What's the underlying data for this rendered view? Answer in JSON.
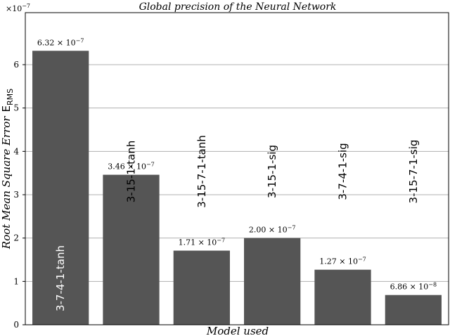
{
  "chart_data": {
    "type": "bar",
    "title": "Global precision of the Neural Network",
    "xlabel": "Model used",
    "ylabel_main": "Root Mean Square Error",
    "ylabel_symbol": "E",
    "ylabel_subscript": "RMS",
    "axis_multiplier": "×10",
    "axis_multiplier_exp": "−7",
    "ylim": [
      0,
      7.2
    ],
    "y_ticks": [
      0,
      1,
      2,
      3,
      4,
      5,
      6
    ],
    "y_tick_labels": [
      "0",
      "1",
      "2",
      "3",
      "4",
      "5",
      "6"
    ],
    "grid": true,
    "categories": [
      "3-7-4-1-tanh",
      "3-15-1-tanh",
      "3-15-7-1-tanh",
      "3-15-1-sig",
      "3-7-4-1-sig",
      "3-15-7-1-sig"
    ],
    "values": [
      6.32,
      3.46,
      1.71,
      2.0,
      1.27,
      0.686
    ],
    "value_labels": [
      {
        "mantissa": "6.32 × 10",
        "exp": "−7"
      },
      {
        "mantissa": "3.46 × 10",
        "exp": "−7"
      },
      {
        "mantissa": "1.71 × 10",
        "exp": "−7"
      },
      {
        "mantissa": "2.00 × 10",
        "exp": "−7"
      },
      {
        "mantissa": "1.27 × 10",
        "exp": "−7"
      },
      {
        "mantissa": "6.86 × 10",
        "exp": "−8"
      }
    ],
    "bar_color": "#555555",
    "grid_color": "#b0b0b0",
    "category_label_inside_color": "#ffffff",
    "category_label_outside_color": "#000000"
  }
}
